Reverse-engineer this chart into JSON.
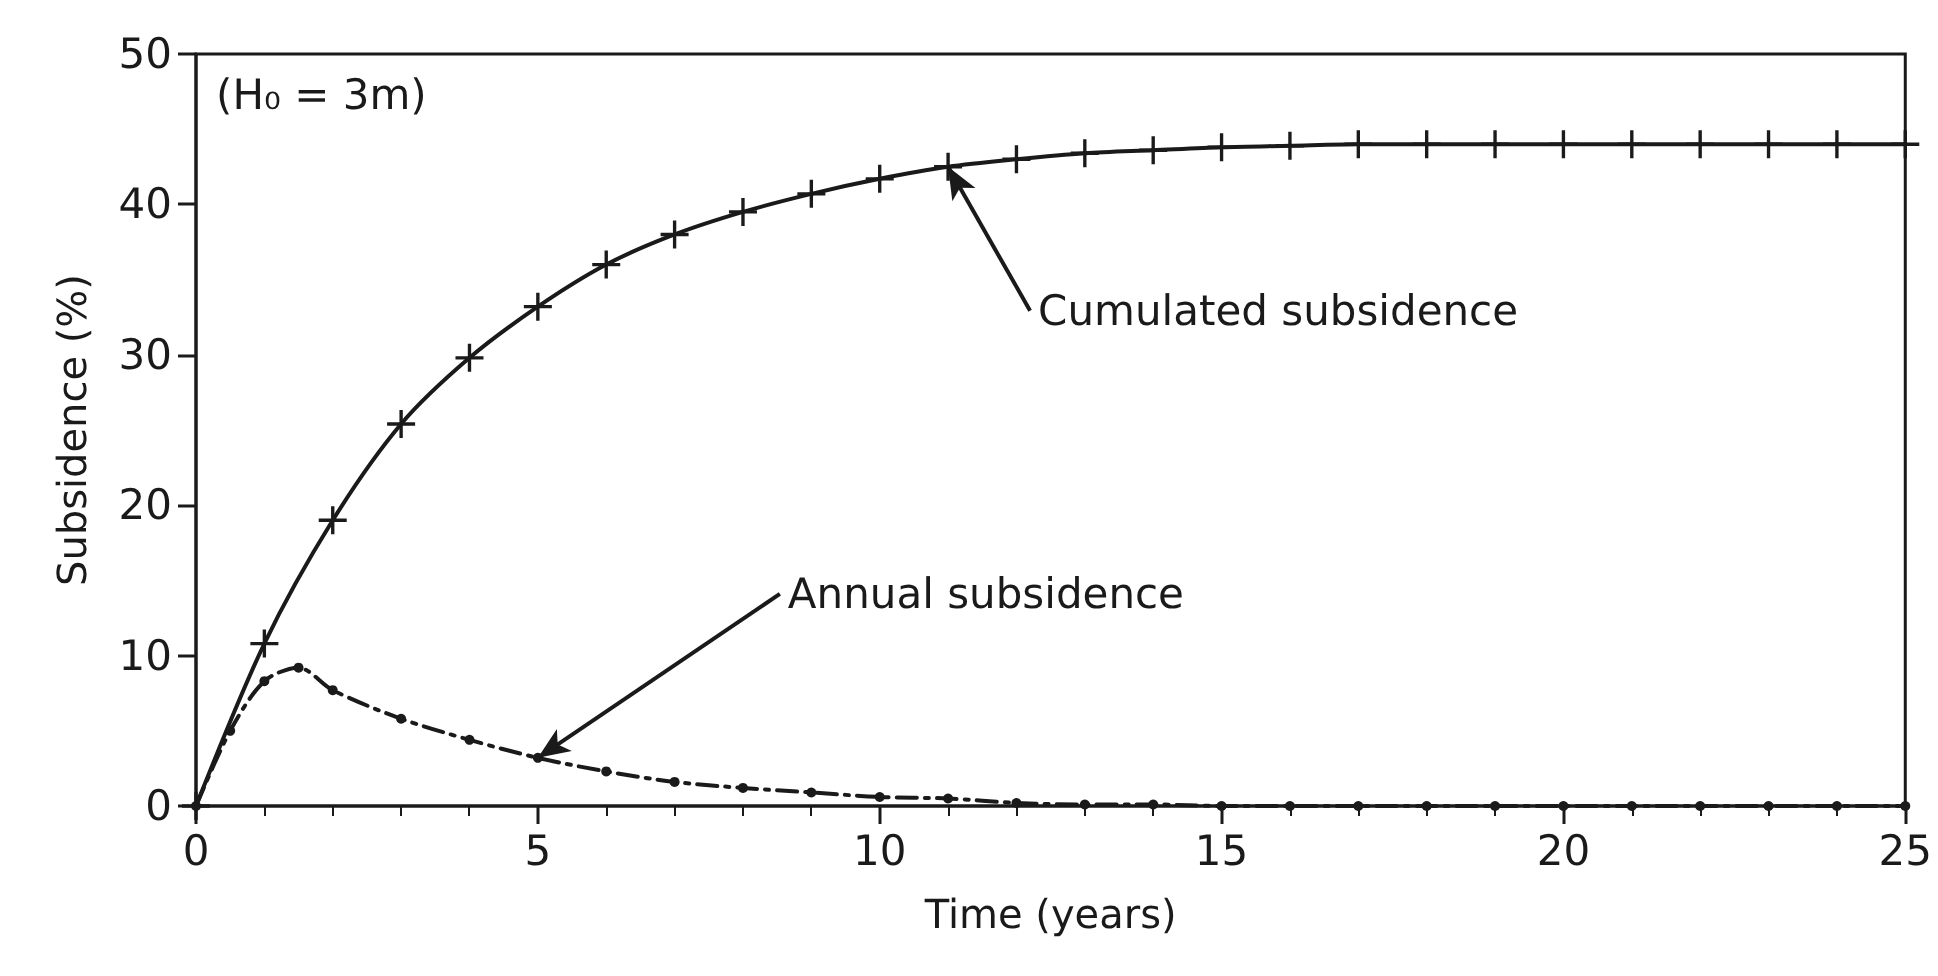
{
  "chart_data": {
    "type": "line",
    "xlabel": "Time (years)",
    "ylabel": "Subsidence (%)",
    "xlim": [
      0,
      25
    ],
    "xticks": [
      0,
      5,
      10,
      15,
      20,
      25
    ],
    "ylim": [
      0,
      50
    ],
    "yticks": [
      0,
      10,
      20,
      30,
      40,
      50
    ],
    "grid": false,
    "series": [
      {
        "color": "#1a1a1a",
        "marker": "cross",
        "line_style": "solid",
        "x": [
          0,
          1,
          2,
          3,
          4,
          5,
          6,
          7,
          8,
          9,
          10,
          11,
          12,
          13,
          14,
          15,
          16,
          17,
          18,
          19,
          20,
          21,
          22,
          23,
          24,
          25
        ],
        "values": [
          0,
          10.8,
          19,
          25.4,
          29.8,
          33.2,
          36,
          38,
          39.5,
          40.7,
          41.7,
          42.5,
          43,
          43.4,
          43.6,
          43.8,
          43.9,
          44,
          44,
          44,
          44,
          44,
          44,
          44,
          44,
          44
        ]
      },
      {
        "color": "#1a1a1a",
        "marker": "circle",
        "line_style": "dashed",
        "x": [
          0,
          0.5,
          1,
          1.5,
          2,
          3,
          4,
          5,
          6,
          7,
          8,
          9,
          10,
          11,
          12,
          13,
          14,
          15,
          16,
          17,
          18,
          19,
          20,
          21,
          22,
          23,
          24,
          25
        ],
        "values": [
          0,
          5,
          8.3,
          9.2,
          7.7,
          5.8,
          4.4,
          3.2,
          2.3,
          1.6,
          1.2,
          0.9,
          0.6,
          0.5,
          0.2,
          0.1,
          0.1,
          0,
          0,
          0,
          0,
          0,
          0,
          0,
          0,
          0,
          0,
          0
        ]
      }
    ],
    "annotations": [
      "(H₀ = 3m)",
      {
        "text": "Cumulated subsidence",
        "x": 11,
        "y": 42.5
      },
      {
        "text": "Annual subsidence",
        "x": 5,
        "y": 3.2
      }
    ]
  }
}
